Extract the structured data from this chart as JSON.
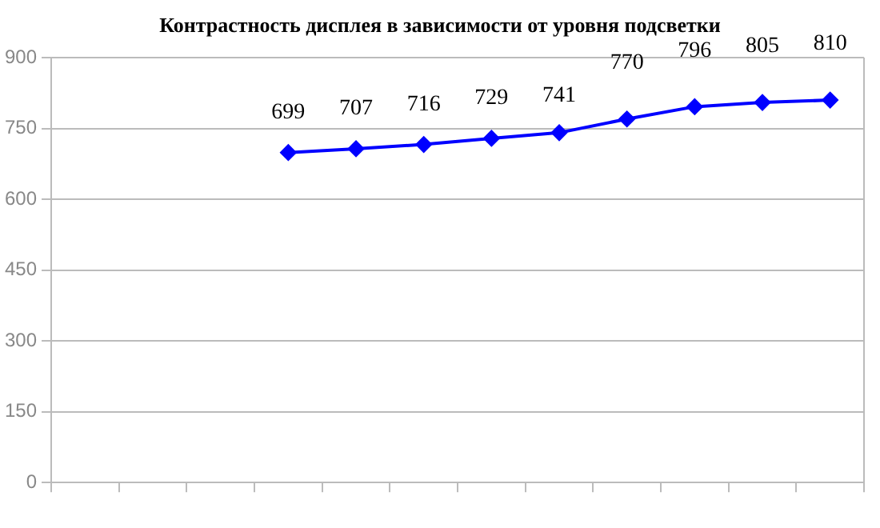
{
  "chart_data": {
    "type": "line",
    "title": "Контрастность дисплея в зависимости от уровня подсветки",
    "categories": [
      null,
      null,
      null,
      null,
      null,
      null,
      null,
      null,
      null,
      null,
      null,
      null
    ],
    "series": [
      {
        "color": "#0000ff",
        "values": [
          null,
          null,
          null,
          699,
          707,
          716,
          729,
          741,
          770,
          796,
          805,
          810
        ]
      }
    ],
    "ylim": [
      0,
      900
    ],
    "yticks": [
      0,
      150,
      300,
      450,
      600,
      750,
      900
    ],
    "grid": "y",
    "legend": false,
    "marker": "diamond",
    "line_style": "solid",
    "data_labels": true
  }
}
